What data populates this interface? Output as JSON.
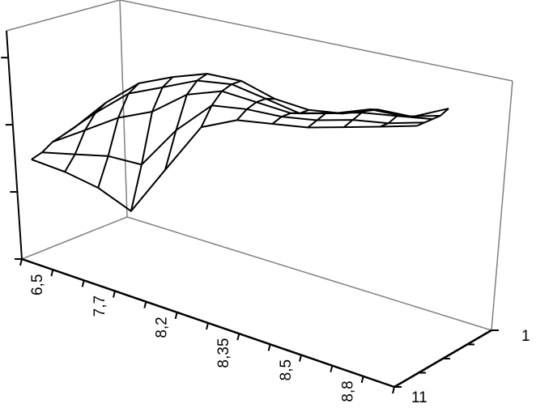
{
  "chart_data": {
    "type": "surface-wireframe",
    "x_tick_labels": [
      "6,5",
      "",
      "7,7",
      "",
      "8,2",
      "",
      "8,35",
      "",
      "8,5",
      "",
      "8,8",
      ""
    ],
    "depth_tick_labels": [
      "11",
      "1"
    ],
    "zlim": [
      0,
      3.4
    ],
    "z_ticks": [
      0,
      1,
      2,
      3
    ],
    "grid": false,
    "z_values": [
      [
        1.55,
        1.5,
        1.4,
        1.2,
        1.9,
        2.6,
        2.8,
        2.85,
        2.9,
        3.0,
        3.1,
        3.2
      ],
      [
        1.6,
        1.7,
        1.8,
        1.8,
        2.4,
        2.85,
        2.9,
        2.9,
        2.95,
        3.05,
        3.1,
        3.2
      ],
      [
        1.7,
        2.0,
        2.3,
        2.5,
        2.85,
        3.0,
        2.95,
        2.9,
        3.0,
        3.1,
        3.15,
        3.2
      ],
      [
        1.75,
        2.2,
        2.6,
        2.8,
        3.0,
        3.05,
        2.95,
        2.85,
        2.95,
        3.1,
        3.1,
        3.2
      ],
      [
        1.8,
        2.3,
        2.7,
        2.9,
        3.05,
        3.05,
        2.9,
        2.85,
        2.9,
        3.05,
        3.05,
        3.25
      ]
    ],
    "colors": {
      "wire": "#000000",
      "walls": "#808080",
      "axes": "#000000"
    }
  }
}
